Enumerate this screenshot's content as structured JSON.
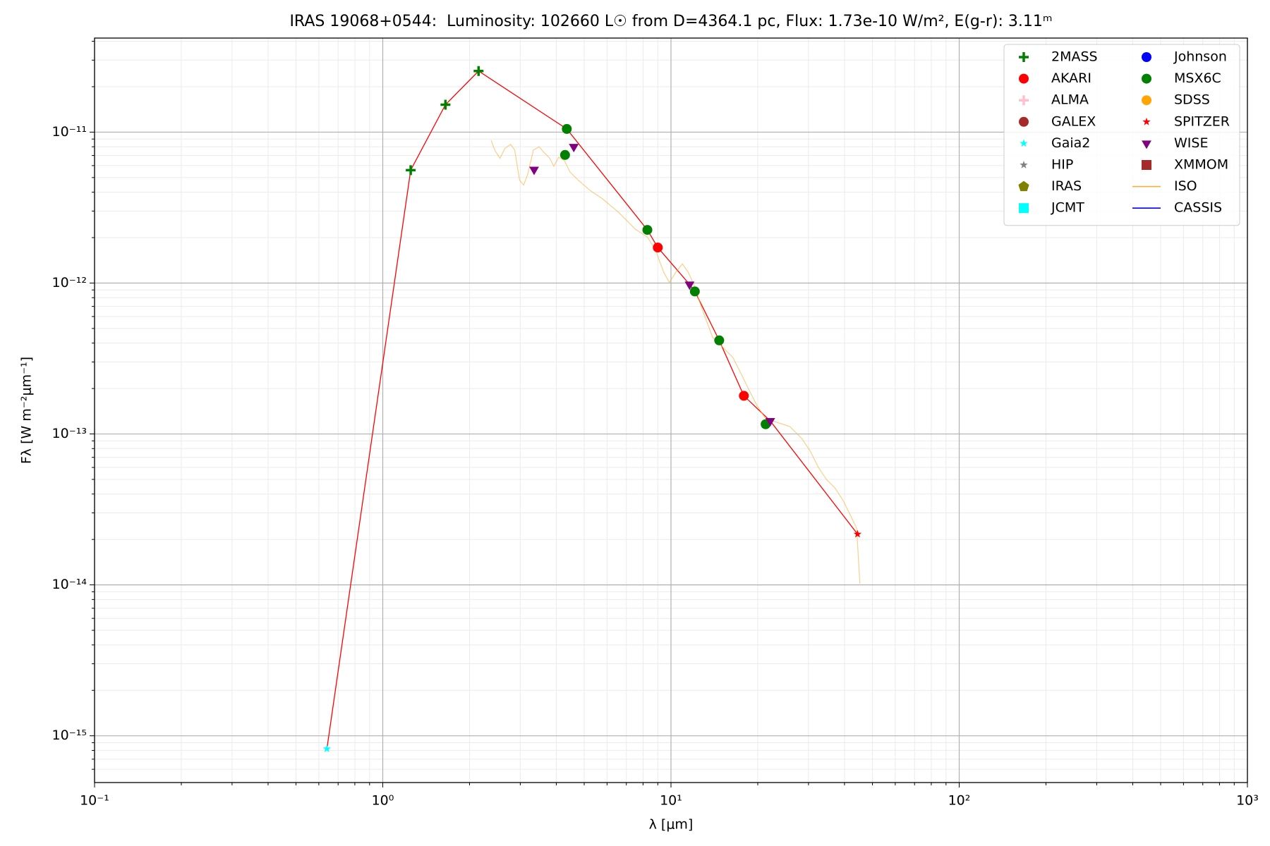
{
  "chart_data": {
    "type": "scatter",
    "title": "IRAS 19068+0544:  Luminosity: 102660 L☉ from D=4364.1 pc, Flux: 1.73e-10 W/m², E(g-r): 3.11ᵐ",
    "xlabel": "λ [μm]",
    "ylabel": "Fλ [W m⁻²μm⁻¹]",
    "xscale": "log",
    "yscale": "log",
    "grid": true,
    "legend": "upper right",
    "legend_columns": 2,
    "xlim": [
      0.1,
      1000
    ],
    "ylim": [
      4.9e-16,
      4.2e-11
    ],
    "xticks": [
      {
        "value": 0.1,
        "label": "10⁻¹"
      },
      {
        "value": 1,
        "label": "10⁰"
      },
      {
        "value": 10,
        "label": "10¹"
      },
      {
        "value": 100,
        "label": "10²"
      },
      {
        "value": 1000,
        "label": "10³"
      }
    ],
    "yticks": [
      {
        "value": 1e-15,
        "label": "10⁻¹⁵"
      },
      {
        "value": 1e-14,
        "label": "10⁻¹⁴"
      },
      {
        "value": 1e-13,
        "label": "10⁻¹³"
      },
      {
        "value": 1e-12,
        "label": "10⁻¹²"
      },
      {
        "value": 1e-11,
        "label": "10⁻¹¹"
      }
    ],
    "xminorticks": [
      0.2,
      0.3,
      0.4,
      0.5,
      0.6,
      0.7,
      0.8,
      0.9,
      2,
      3,
      4,
      5,
      6,
      7,
      8,
      9,
      20,
      30,
      40,
      50,
      60,
      70,
      80,
      90,
      200,
      300,
      400,
      500,
      600,
      700,
      800,
      900
    ],
    "yminorticks": [
      6e-16,
      7e-16,
      8e-16,
      9e-16,
      2e-15,
      3e-15,
      4e-15,
      5e-15,
      6e-15,
      7e-15,
      8e-15,
      9e-15,
      2e-14,
      3e-14,
      4e-14,
      5e-14,
      6e-14,
      7e-14,
      8e-14,
      9e-14,
      2e-13,
      3e-13,
      4e-13,
      5e-13,
      6e-13,
      7e-13,
      8e-13,
      9e-13,
      2e-12,
      3e-12,
      4e-12,
      5e-12,
      6e-12,
      7e-12,
      8e-12,
      9e-12,
      2e-11,
      3e-11,
      4e-11
    ],
    "series": [
      {
        "color": "red",
        "marker": "line",
        "width": 1.3,
        "x": [
          0.64,
          1.25,
          1.65,
          2.15,
          4.35,
          8.28,
          9.0,
          11.6,
          12.1,
          14.7,
          17.9,
          22.1,
          44.4
        ],
        "values": [
          8.2e-16,
          5.6e-12,
          1.52e-11,
          2.54e-11,
          1.05e-11,
          2.25e-12,
          1.72e-12,
          9.8e-13,
          8.8e-13,
          4.17e-13,
          1.79e-13,
          1.22e-13,
          2.17e-14
        ]
      },
      {
        "color": "#f5b03c",
        "marker": "line",
        "width": 1.2,
        "opacity": 0.6,
        "x": [
          2.376,
          2.453,
          2.551,
          2.653,
          2.777,
          2.869,
          2.983,
          3.081,
          3.183,
          3.332,
          3.486,
          3.625,
          3.794,
          3.92,
          4.076,
          4.266,
          4.464,
          4.764,
          5.253,
          5.791,
          6.596,
          7.511,
          8.281,
          8.839,
          9.432,
          9.872,
          10.4,
          10.95,
          11.47,
          12.0,
          12.81,
          13.94,
          15.37,
          16.4,
          17.5,
          18.67,
          19.93,
          21.27,
          23.45,
          25.85,
          28.5,
          30.42,
          32.45,
          34.64,
          36.97,
          39.45,
          42.1,
          44.07,
          45.23
        ],
        "values": [
          8.83e-12,
          7.52e-12,
          6.72e-12,
          7.8e-12,
          8.3e-12,
          7.61e-12,
          4.81e-12,
          4.46e-12,
          5.24e-12,
          7.61e-12,
          8e-12,
          7.33e-12,
          6.72e-12,
          5.94e-12,
          6.81e-12,
          6.48e-12,
          5.44e-12,
          4.81e-12,
          4.09e-12,
          3.61e-12,
          2.93e-12,
          2.28e-12,
          2.02e-12,
          1.65e-12,
          1.18e-12,
          1.01e-12,
          1.18e-12,
          1.34e-12,
          1.18e-12,
          9.81e-13,
          6.76e-13,
          4.38e-13,
          3.64e-13,
          3.21e-13,
          2.51e-13,
          1.95e-13,
          1.53e-13,
          1.27e-13,
          1.19e-13,
          1.12e-13,
          9.28e-14,
          7.7e-14,
          6.01e-14,
          4.99e-14,
          4.41e-14,
          3.66e-14,
          2.85e-14,
          2.37e-14,
          1.02e-14
        ]
      },
      {
        "name": "2MASS",
        "color": "green",
        "marker": "plus",
        "x": [
          1.25,
          1.65,
          2.15
        ],
        "values": [
          5.6e-12,
          1.52e-11,
          2.54e-11
        ]
      },
      {
        "name": "AKARI",
        "color": "red",
        "marker": "circle",
        "x": [
          9.0,
          17.9
        ],
        "values": [
          1.72e-12,
          1.79e-13
        ]
      },
      {
        "name": "ALMA",
        "color": "pink",
        "marker": "plus",
        "x": [],
        "values": []
      },
      {
        "name": "GALEX",
        "color": "brown",
        "marker": "circle",
        "x": [],
        "values": []
      },
      {
        "name": "Gaia2",
        "color": "cyan",
        "marker": "star",
        "x": [
          0.64
        ],
        "values": [
          8.2e-16
        ]
      },
      {
        "name": "HIP",
        "color": "gray",
        "marker": "star",
        "x": [],
        "values": []
      },
      {
        "name": "IRAS",
        "color": "olive",
        "marker": "pentagon",
        "x": [],
        "values": []
      },
      {
        "name": "JCMT",
        "color": "cyan",
        "marker": "square",
        "x": [],
        "values": []
      },
      {
        "name": "Johnson",
        "color": "blue",
        "marker": "circle",
        "x": [],
        "values": []
      },
      {
        "name": "MSX6C",
        "color": "green",
        "marker": "circle",
        "x": [
          4.29,
          4.35,
          8.28,
          12.1,
          14.7,
          21.3
        ],
        "values": [
          7.06e-12,
          1.05e-11,
          2.25e-12,
          8.8e-13,
          4.17e-13,
          1.16e-13
        ]
      },
      {
        "name": "SDSS",
        "color": "orange",
        "marker": "circle",
        "x": [],
        "values": []
      },
      {
        "name": "SPITZER",
        "color": "red",
        "marker": "star",
        "x": [
          44.4
        ],
        "values": [
          2.17e-14
        ]
      },
      {
        "name": "WISE",
        "color": "purple",
        "marker": "triangle",
        "x": [
          3.35,
          4.6,
          11.6,
          22.1
        ],
        "values": [
          5.65e-12,
          8e-12,
          9.8e-13,
          1.22e-13
        ]
      },
      {
        "name": "XMMOM",
        "color": "brown",
        "marker": "square",
        "x": [],
        "values": []
      },
      {
        "name": "ISO",
        "color": "#f5b03c",
        "marker": "line",
        "x": [],
        "values": []
      },
      {
        "name": "CASSIS",
        "color": "blue",
        "marker": "line",
        "x": [],
        "values": []
      }
    ]
  }
}
